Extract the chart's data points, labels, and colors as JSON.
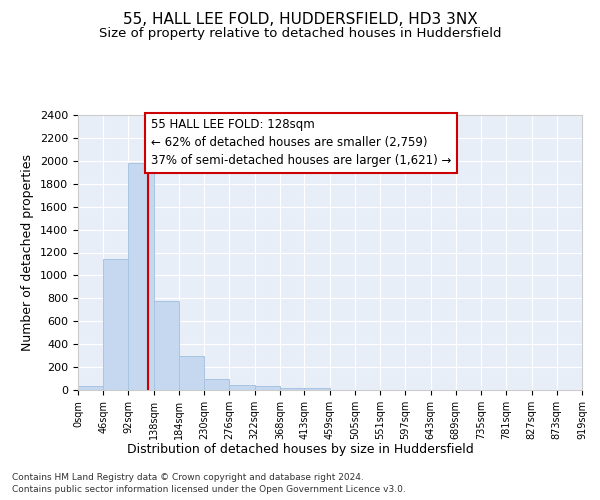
{
  "title_line1": "55, HALL LEE FOLD, HUDDERSFIELD, HD3 3NX",
  "title_line2": "Size of property relative to detached houses in Huddersfield",
  "xlabel": "Distribution of detached houses by size in Huddersfield",
  "ylabel": "Number of detached properties",
  "bin_edges": [
    0,
    46,
    92,
    138,
    184,
    230,
    276,
    322,
    368,
    413,
    459,
    505,
    551,
    597,
    643,
    689,
    735,
    781,
    827,
    873,
    919
  ],
  "bar_heights": [
    35,
    1140,
    1980,
    775,
    300,
    100,
    45,
    38,
    20,
    20,
    0,
    0,
    0,
    0,
    0,
    0,
    0,
    0,
    0,
    0
  ],
  "bar_color": "#c5d8f0",
  "bar_edge_color": "#a8c4e0",
  "property_size": 128,
  "red_line_color": "#cc0000",
  "annotation_line1": "55 HALL LEE FOLD: 128sqm",
  "annotation_line2": "← 62% of detached houses are smaller (2,759)",
  "annotation_line3": "37% of semi-detached houses are larger (1,621) →",
  "annotation_box_color": "#ffffff",
  "annotation_box_edge": "#cc0000",
  "ylim": [
    0,
    2400
  ],
  "yticks": [
    0,
    200,
    400,
    600,
    800,
    1000,
    1200,
    1400,
    1600,
    1800,
    2000,
    2200,
    2400
  ],
  "footnote1": "Contains HM Land Registry data © Crown copyright and database right 2024.",
  "footnote2": "Contains public sector information licensed under the Open Government Licence v3.0.",
  "fig_background_color": "#ffffff",
  "plot_bg_color": "#e8eef8",
  "grid_color": "#ffffff",
  "title_fontsize": 11,
  "subtitle_fontsize": 9.5,
  "axis_label_fontsize": 9,
  "tick_fontsize": 8,
  "xtick_fontsize": 7,
  "annotation_fontsize": 8.5,
  "footnote_fontsize": 6.5
}
